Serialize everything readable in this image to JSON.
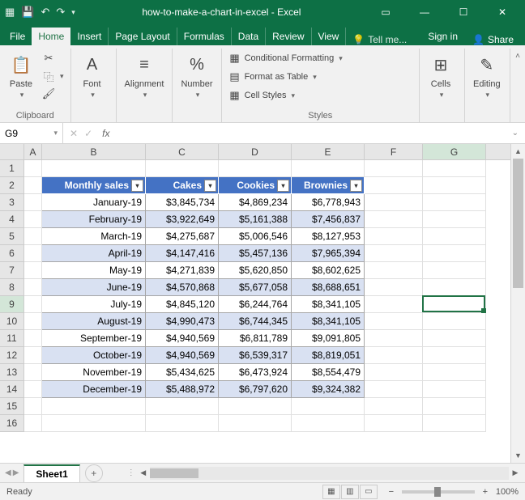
{
  "titlebar": {
    "title": "how-to-make-a-chart-in-excel - Excel"
  },
  "menu": {
    "file": "File",
    "home": "Home",
    "insert": "Insert",
    "page_layout": "Page Layout",
    "formulas": "Formulas",
    "data": "Data",
    "review": "Review",
    "view": "View",
    "tellme": "Tell me...",
    "signin": "Sign in",
    "share": "Share"
  },
  "ribbon": {
    "clipboard": {
      "paste": "Paste",
      "label": "Clipboard"
    },
    "font": {
      "btn": "Font"
    },
    "alignment": {
      "btn": "Alignment"
    },
    "number": {
      "btn": "Number"
    },
    "styles": {
      "cond": "Conditional Formatting",
      "table": "Format as Table",
      "cell": "Cell Styles",
      "label": "Styles"
    },
    "cells": {
      "btn": "Cells"
    },
    "editing": {
      "btn": "Editing"
    }
  },
  "formula_bar": {
    "name_box": "G9",
    "fx": "fx",
    "value": ""
  },
  "grid": {
    "col_widths": {
      "A": 22,
      "B": 128,
      "C": 90,
      "D": 90,
      "E": 90,
      "F": 72,
      "G": 78
    },
    "columns": [
      "A",
      "B",
      "C",
      "D",
      "E",
      "F",
      "G"
    ],
    "row_count": 16,
    "active_cell": {
      "col": "G",
      "row": 9
    },
    "table": {
      "header_bg": "#4472c4",
      "header_fg": "#ffffff",
      "band_bg": "#d9e1f2",
      "border": "#a6a6a6",
      "headers": [
        "Monthly sales",
        "Cakes",
        "Cookies",
        "Brownies"
      ],
      "rows": [
        [
          "January-19",
          "$3,845,734",
          "$4,869,234",
          "$6,778,943"
        ],
        [
          "February-19",
          "$3,922,649",
          "$5,161,388",
          "$7,456,837"
        ],
        [
          "March-19",
          "$4,275,687",
          "$5,006,546",
          "$8,127,953"
        ],
        [
          "April-19",
          "$4,147,416",
          "$5,457,136",
          "$7,965,394"
        ],
        [
          "May-19",
          "$4,271,839",
          "$5,620,850",
          "$8,602,625"
        ],
        [
          "June-19",
          "$4,570,868",
          "$5,677,058",
          "$8,688,651"
        ],
        [
          "July-19",
          "$4,845,120",
          "$6,244,764",
          "$8,341,105"
        ],
        [
          "August-19",
          "$4,990,473",
          "$6,744,345",
          "$8,341,105"
        ],
        [
          "September-19",
          "$4,940,569",
          "$6,811,789",
          "$9,091,805"
        ],
        [
          "October-19",
          "$4,940,569",
          "$6,539,317",
          "$8,819,051"
        ],
        [
          "November-19",
          "$5,434,625",
          "$6,473,924",
          "$8,554,479"
        ],
        [
          "December-19",
          "$5,488,972",
          "$6,797,620",
          "$9,324,382"
        ]
      ]
    }
  },
  "sheets": {
    "active": "Sheet1"
  },
  "status": {
    "ready": "Ready",
    "zoom": "100%"
  }
}
